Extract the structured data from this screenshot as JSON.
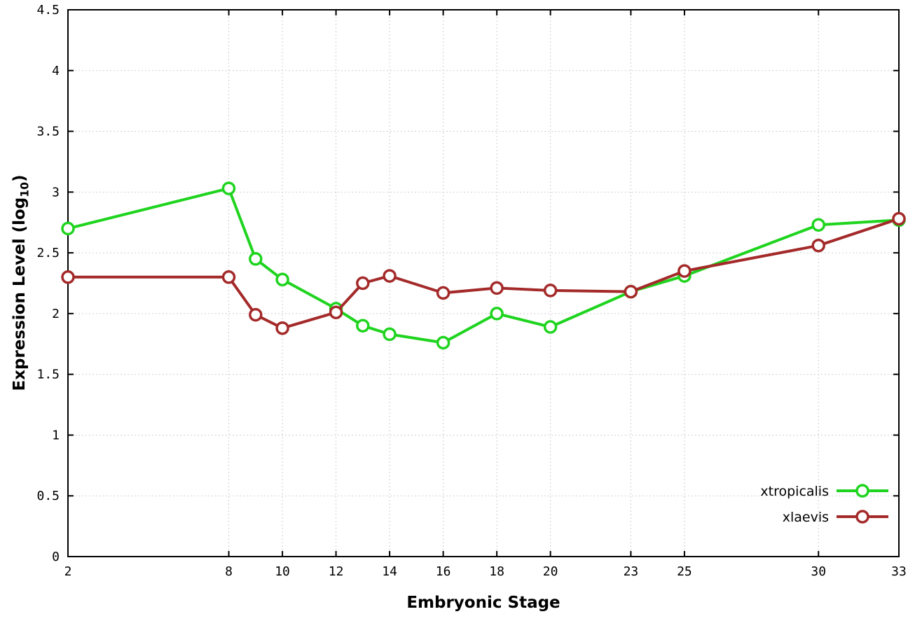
{
  "chart_data": {
    "type": "line",
    "title": "",
    "xlabel": "Embryonic Stage",
    "ylabel": {
      "prefix": "Expression Level (log",
      "sub": "10",
      "suffix": ")"
    },
    "xlim": [
      2,
      33
    ],
    "ylim": [
      0,
      4.5
    ],
    "x_ticks": [
      2,
      8,
      10,
      12,
      14,
      16,
      18,
      20,
      23,
      25,
      30,
      33
    ],
    "y_ticks": [
      0,
      0.5,
      1,
      1.5,
      2,
      2.5,
      3,
      3.5,
      4,
      4.5
    ],
    "grid": true,
    "legend_position": "bottom-right",
    "x": [
      2,
      8,
      9,
      10,
      12,
      13,
      14,
      16,
      18,
      20,
      23,
      25,
      30,
      33
    ],
    "series": [
      {
        "name": "xtropicalis",
        "color": "#1fd41f",
        "values": [
          2.7,
          3.03,
          2.45,
          2.28,
          2.04,
          1.9,
          1.83,
          1.76,
          2.0,
          1.89,
          2.18,
          2.31,
          2.73,
          2.77
        ]
      },
      {
        "name": "xlaevis",
        "color": "#a42a2a",
        "values": [
          2.3,
          2.3,
          1.99,
          1.88,
          2.01,
          2.25,
          2.31,
          2.17,
          2.21,
          2.19,
          2.18,
          2.35,
          2.56,
          2.78
        ]
      }
    ],
    "style": {
      "grid_color": "#cfcfcf",
      "border_color": "#000000",
      "marker_fill": "#ffffff",
      "line_width": 4,
      "marker_radius": 8
    }
  }
}
